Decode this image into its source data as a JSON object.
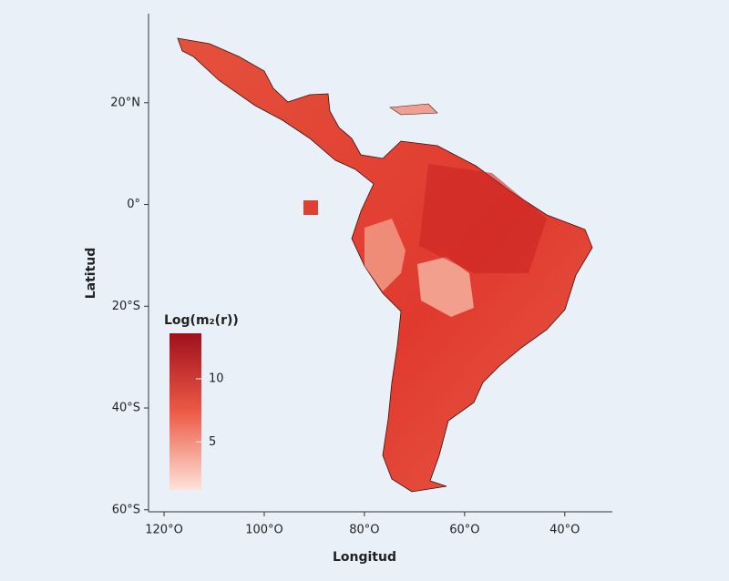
{
  "chart_data": {
    "type": "map",
    "xlabel": "Longitud",
    "ylabel": "Latitud",
    "xlim": [
      -123.1,
      -30.5
    ],
    "xticks": [
      {
        "value": -120,
        "label": "120°O"
      },
      {
        "value": -100,
        "label": "100°O"
      },
      {
        "value": -80,
        "label": "80°O"
      },
      {
        "value": -60,
        "label": "60°O"
      },
      {
        "value": -40,
        "label": "40°O"
      }
    ],
    "ylim": [
      -60.4,
      37.5
    ],
    "yticks": [
      {
        "value": 20,
        "label": "20°N"
      },
      {
        "value": 0,
        "label": "0°"
      },
      {
        "value": -20,
        "label": "20°S"
      },
      {
        "value": -40,
        "label": "40°S"
      },
      {
        "value": -60,
        "label": "60°S"
      }
    ],
    "colorbar": {
      "title": "Log(m₂(r))",
      "lim": [
        1.2,
        13.6
      ],
      "ticks": [
        5,
        10
      ],
      "colors": [
        "#fde3da",
        "#ec5a45",
        "#a0101c"
      ]
    }
  }
}
